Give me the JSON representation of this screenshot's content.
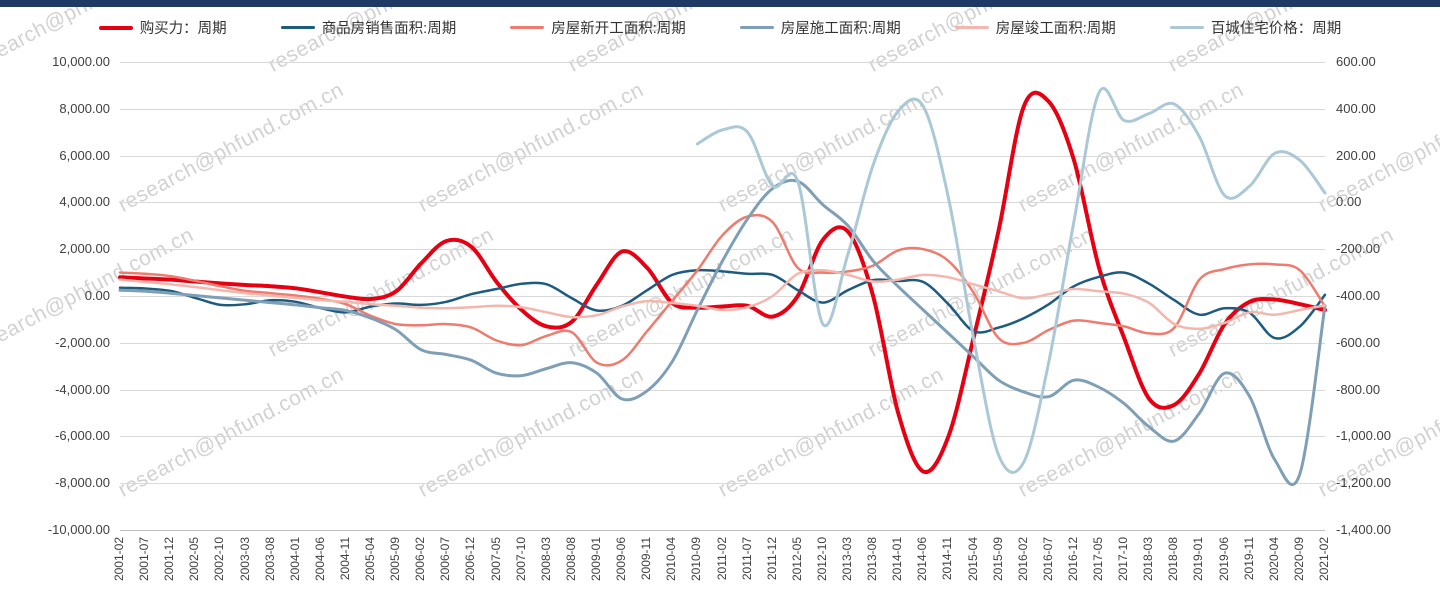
{
  "colors": {
    "top_bar": "#1f3864",
    "watermark": "#d2d2d2",
    "grid": "#d9d9d9",
    "axis_text": "#404040"
  },
  "watermark": {
    "text": "research@phfund.com.cn"
  },
  "chart_data": {
    "type": "line",
    "title": "",
    "grid": true,
    "legend_position": "top",
    "x": [
      "2001-02",
      "2001-07",
      "2001-12",
      "2002-05",
      "2002-10",
      "2003-03",
      "2003-08",
      "2004-01",
      "2004-06",
      "2004-11",
      "2005-04",
      "2005-09",
      "2006-02",
      "2006-07",
      "2006-12",
      "2007-05",
      "2007-10",
      "2008-03",
      "2008-08",
      "2009-01",
      "2009-06",
      "2009-11",
      "2010-04",
      "2010-09",
      "2011-02",
      "2011-07",
      "2011-12",
      "2012-05",
      "2012-10",
      "2013-03",
      "2013-08",
      "2014-01",
      "2014-06",
      "2014-11",
      "2015-04",
      "2015-09",
      "2016-02",
      "2016-07",
      "2016-12",
      "2017-05",
      "2017-10",
      "2018-03",
      "2018-08",
      "2019-01",
      "2019-06",
      "2019-11",
      "2020-04",
      "2020-09",
      "2021-02"
    ],
    "left_axis": {
      "min": -10000,
      "max": 10000,
      "step": 2000,
      "tick_labels": [
        "10,000.00",
        "8,000.00",
        "6,000.00",
        "4,000.00",
        "2,000.00",
        "0.00",
        "-2,000.00",
        "-4,000.00",
        "-6,000.00",
        "-8,000.00",
        "-10,000.00"
      ]
    },
    "right_axis": {
      "min": -1400,
      "max": 600,
      "step": 200,
      "tick_labels": [
        "600.00",
        "400.00",
        "200.00",
        "0.00",
        "-200.00",
        "-400.00",
        "-600.00",
        "-800.00",
        "-1,000.00",
        "-1,200.00",
        "-1,400.00"
      ]
    },
    "series": [
      {
        "name": "购买力：周期",
        "axis": "left",
        "color": "#e60012",
        "width": 4,
        "values": [
          800,
          750,
          700,
          620,
          540,
          470,
          420,
          330,
          160,
          -30,
          -130,
          200,
          1400,
          2350,
          2100,
          600,
          -600,
          -1300,
          -1100,
          500,
          1900,
          1200,
          -300,
          -500,
          -450,
          -420,
          -880,
          0,
          2400,
          2750,
          0,
          -5000,
          -7500,
          -6000,
          -1800,
          2800,
          8100,
          8300,
          5800,
          1200,
          -1800,
          -4400,
          -4650,
          -3300,
          -1200,
          -250,
          -150,
          -350,
          -600
        ]
      },
      {
        "name": "商品房销售面积:周期",
        "axis": "left",
        "color": "#1d5b7f",
        "width": 2.5,
        "values": [
          350,
          320,
          220,
          -80,
          -380,
          -350,
          -180,
          -250,
          -520,
          -700,
          -450,
          -320,
          -380,
          -250,
          80,
          300,
          520,
          500,
          -100,
          -620,
          -420,
          250,
          900,
          1100,
          1050,
          950,
          900,
          250,
          -280,
          250,
          680,
          640,
          600,
          -350,
          -1500,
          -1350,
          -950,
          -350,
          420,
          820,
          1000,
          520,
          -180,
          -800,
          -520,
          -720,
          -1800,
          -1300,
          50
        ]
      },
      {
        "name": "房屋新开工面积:周期",
        "axis": "left",
        "color": "#ee7b6e",
        "width": 2.5,
        "values": [
          1000,
          950,
          850,
          650,
          420,
          220,
          120,
          20,
          -120,
          -350,
          -850,
          -1200,
          -1250,
          -1200,
          -1350,
          -1900,
          -2100,
          -1700,
          -1550,
          -2850,
          -2750,
          -1500,
          -200,
          1100,
          2600,
          3400,
          3150,
          1200,
          1000,
          1050,
          1300,
          1950,
          2000,
          1500,
          150,
          -1800,
          -2000,
          -1450,
          -1050,
          -1150,
          -1300,
          -1600,
          -1350,
          700,
          1150,
          1350,
          1350,
          1100,
          -450
        ]
      },
      {
        "name": "房屋施工面积:周期",
        "axis": "left",
        "color": "#7f9fb6",
        "width": 3,
        "values": [
          250,
          200,
          120,
          20,
          -80,
          -180,
          -280,
          -380,
          -500,
          -620,
          -950,
          -1450,
          -2300,
          -2500,
          -2750,
          -3300,
          -3400,
          -3100,
          -2850,
          -3300,
          -4400,
          -4050,
          -2800,
          -600,
          1500,
          3300,
          4600,
          4900,
          3900,
          3000,
          1500,
          400,
          -600,
          -1600,
          -2600,
          -3600,
          -4100,
          -4300,
          -3600,
          -3900,
          -4600,
          -5600,
          -6200,
          -5000,
          -3300,
          -4300,
          -7000,
          -7600,
          -400
        ]
      },
      {
        "name": "房屋竣工面积:周期",
        "axis": "left",
        "color": "#f3b7ae",
        "width": 2.5,
        "values": [
          700,
          600,
          500,
          380,
          250,
          120,
          20,
          -80,
          -180,
          -250,
          -350,
          -420,
          -500,
          -520,
          -480,
          -420,
          -480,
          -700,
          -900,
          -820,
          -450,
          -220,
          -300,
          -420,
          -600,
          -480,
          0,
          950,
          1100,
          900,
          620,
          700,
          900,
          800,
          500,
          200,
          -100,
          80,
          300,
          200,
          100,
          -300,
          -1200,
          -1400,
          -1150,
          -700,
          -800,
          -600,
          -400
        ]
      },
      {
        "name": "百城住宅价格：周期",
        "axis": "right",
        "color": "#abc8d6",
        "width": 3,
        "values": [
          null,
          null,
          null,
          null,
          null,
          null,
          null,
          null,
          null,
          null,
          null,
          null,
          null,
          null,
          null,
          null,
          null,
          null,
          null,
          null,
          null,
          null,
          null,
          250,
          310,
          300,
          70,
          90,
          -520,
          -220,
          160,
          390,
          410,
          20,
          -580,
          -1080,
          -1110,
          -680,
          -80,
          470,
          350,
          380,
          420,
          280,
          30,
          70,
          210,
          180,
          40
        ]
      }
    ]
  }
}
